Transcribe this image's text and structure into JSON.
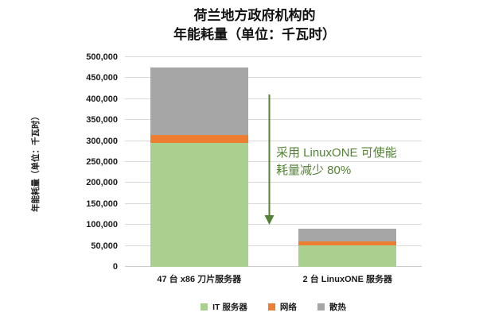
{
  "title": {
    "line1": "荷兰地方政府机构的",
    "line2": "年能耗量（单位：千瓦时）"
  },
  "annotation": {
    "line1": "采用 LinuxONE 可使能",
    "line2": "耗量减少 80%",
    "color": "#538135"
  },
  "arrow": {
    "name": "reduction-arrow",
    "color": "#538135"
  },
  "colors": {
    "it_server": "#a9d08e",
    "network": "#ed7d31",
    "cooling": "#a6a6a6",
    "gridline": "#d9d9d9",
    "text": "#1a1a1a",
    "accent_green": "#538135"
  },
  "chart_data": {
    "type": "bar",
    "stacked": true,
    "title": "荷兰地方政府机构的 年能耗量（单位：千瓦时）",
    "xlabel": "",
    "ylabel": "年能耗量（单位：千瓦时）",
    "categories": [
      "47 台 x86 刀片服务器",
      "2 台 LinuxONE 服务器"
    ],
    "series": [
      {
        "name": "IT 服务器",
        "color": "#a9d08e",
        "values": [
          295000,
          52000
        ]
      },
      {
        "name": "网络",
        "color": "#ed7d31",
        "values": [
          20000,
          9000
        ]
      },
      {
        "name": "散热",
        "color": "#a6a6a6",
        "values": [
          160000,
          30000
        ]
      }
    ],
    "totals": [
      475000,
      91000
    ],
    "ylim": [
      0,
      500000
    ],
    "ytick_step": 50000,
    "ytick_labels": [
      "0",
      "50,000",
      "100,000",
      "150,000",
      "200,000",
      "250,000",
      "300,000",
      "350,000",
      "400,000",
      "450,000",
      "500,000"
    ],
    "grid": true,
    "legend_position": "bottom",
    "annotation_text": "采用 LinuxONE 可使能耗量减少 80%"
  }
}
